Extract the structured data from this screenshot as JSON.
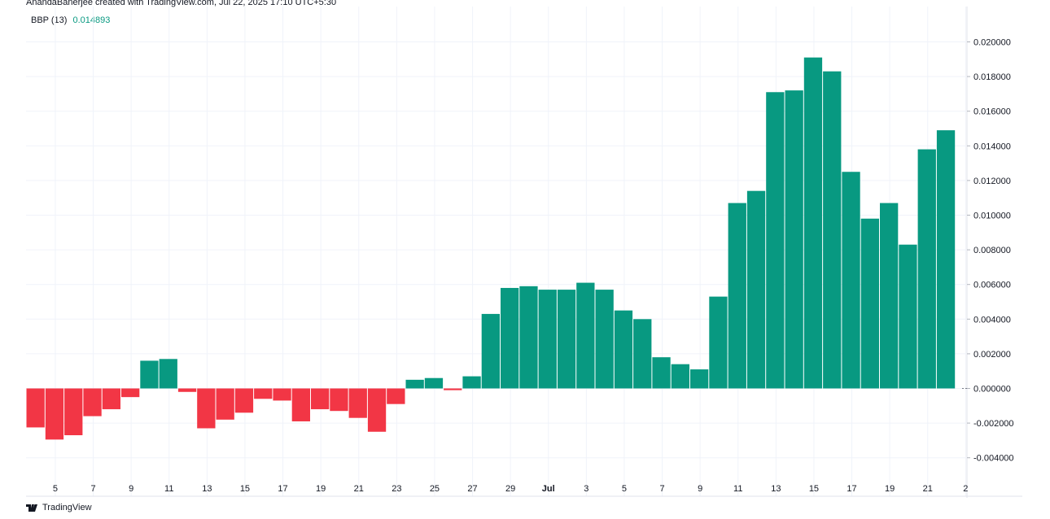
{
  "attribution": "AnandaBanerjee created with TradingView.com, Jul 22, 2025 17:10 UTC+5:30",
  "legend": {
    "name": "BBP (13)",
    "value": "0.014893"
  },
  "footer": {
    "brand": "TradingView"
  },
  "colors": {
    "positive": "#089981",
    "negative": "#f23645",
    "grid": "#f0f3fa",
    "axis": "#e0e3eb"
  },
  "chart_data": {
    "type": "bar",
    "title": "",
    "ylim": [
      -0.005,
      0.0215
    ],
    "yticks": [
      "0.020000",
      "0.018000",
      "0.016000",
      "0.014000",
      "0.012000",
      "0.010000",
      "0.008000",
      "0.006000",
      "0.004000",
      "0.002000",
      "0.000000",
      "-0.002000",
      "-0.004000"
    ],
    "xtick_labels": [
      "5",
      "7",
      "9",
      "11",
      "13",
      "15",
      "17",
      "19",
      "21",
      "23",
      "25",
      "27",
      "29",
      "Jul",
      "3",
      "5",
      "7",
      "9",
      "11",
      "13",
      "15",
      "17",
      "19",
      "21",
      "2"
    ],
    "xtick_bar_index": [
      1,
      3,
      5,
      7,
      9,
      11,
      13,
      15,
      17,
      19,
      21,
      23,
      25,
      27,
      29,
      31,
      33,
      35,
      37,
      39,
      41,
      43,
      45,
      47,
      49
    ],
    "bold_ticks": [
      "Jul"
    ],
    "grid": true,
    "values": [
      -0.00225,
      -0.00295,
      -0.0027,
      -0.0016,
      -0.0012,
      -0.0005,
      0.0016,
      0.0017,
      -0.0002,
      -0.0023,
      -0.0018,
      -0.0014,
      -0.0006,
      -0.0007,
      -0.0019,
      -0.0012,
      -0.0013,
      -0.0017,
      -0.0025,
      -0.0009,
      0.0005,
      0.0006,
      -0.0001,
      0.0007,
      0.0043,
      0.0058,
      0.0059,
      0.0057,
      0.0057,
      0.0061,
      0.0057,
      0.0045,
      0.004,
      0.0018,
      0.0014,
      0.0011,
      0.0053,
      0.0107,
      0.0114,
      0.0171,
      0.0172,
      0.0191,
      0.0183,
      0.0125,
      0.0098,
      0.0107,
      0.0083,
      0.0138,
      0.0149
    ]
  }
}
